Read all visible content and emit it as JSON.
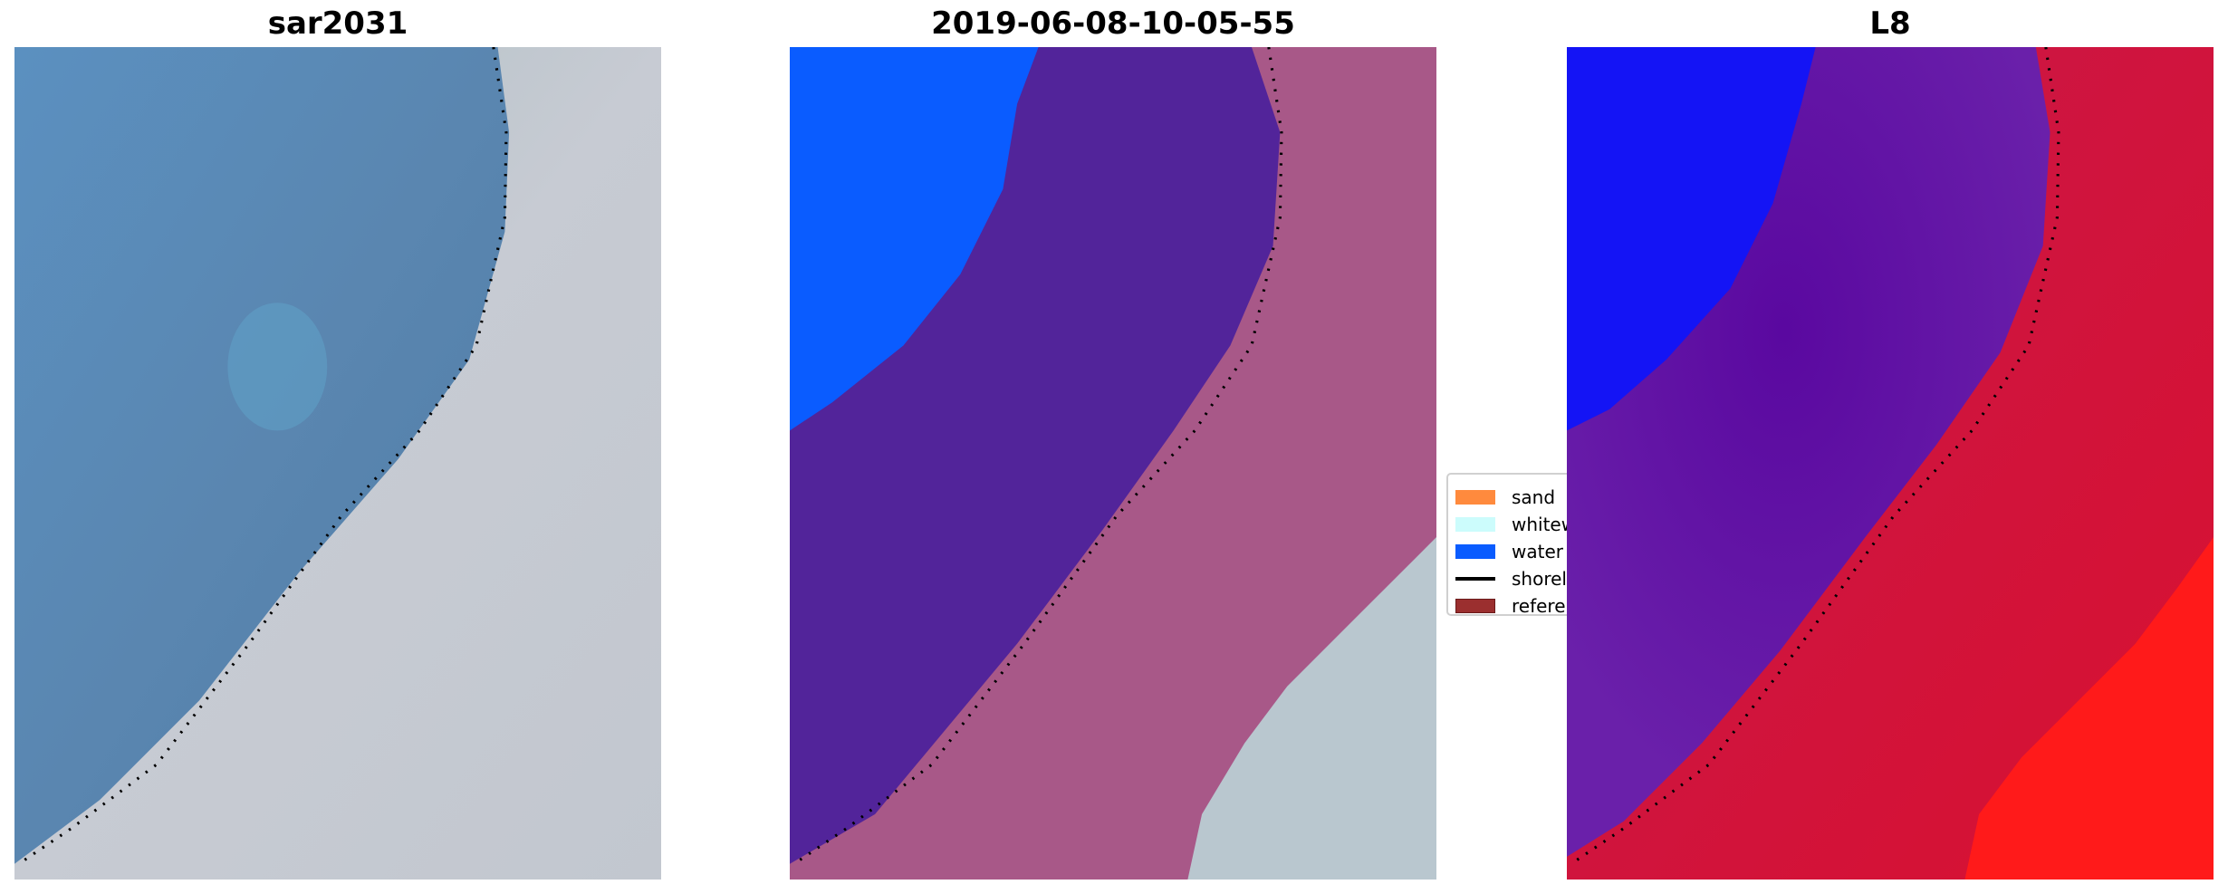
{
  "panels": [
    {
      "title": "sar2031"
    },
    {
      "title": "2019-06-08-10-05-55"
    },
    {
      "title": "L8"
    }
  ],
  "legend": {
    "items": [
      {
        "label": "sand",
        "color": "#ff8a3d",
        "kind": "patch"
      },
      {
        "label": "whitew",
        "color": "#ccfcfc",
        "kind": "patch"
      },
      {
        "label": "water",
        "color": "#0a5cff",
        "kind": "patch"
      },
      {
        "label": "shorel",
        "color": "#000000",
        "kind": "line"
      },
      {
        "label": "referen",
        "color": "#9b2f2f",
        "kind": "patch"
      }
    ]
  }
}
